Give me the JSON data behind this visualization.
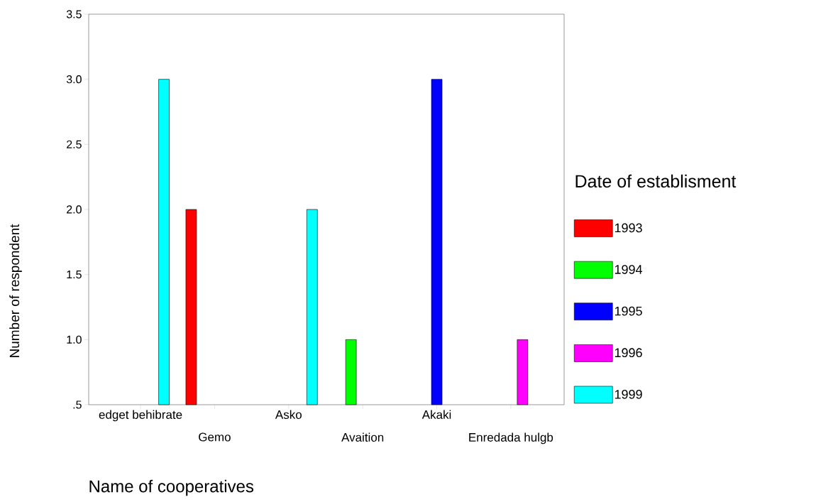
{
  "chart_data": {
    "type": "bar",
    "xlabel": "Name of cooperatives",
    "ylabel": "Number of respondent",
    "legend_title": "Date of establisment",
    "categories": [
      "edget behibrate",
      "Gemo",
      "Asko",
      "Avaition",
      "Akaki",
      "Enredada hulgb"
    ],
    "series": [
      {
        "name": "1993",
        "color": "#ff0000",
        "values": [
          null,
          2,
          null,
          null,
          null,
          null
        ]
      },
      {
        "name": "1994",
        "color": "#00ff00",
        "values": [
          null,
          null,
          null,
          1,
          null,
          null
        ]
      },
      {
        "name": "1995",
        "color": "#0000ff",
        "values": [
          null,
          null,
          null,
          null,
          3,
          null
        ]
      },
      {
        "name": "1996",
        "color": "#ff00ff",
        "values": [
          null,
          null,
          null,
          null,
          null,
          1
        ]
      },
      {
        "name": "1999",
        "color": "#00ffff",
        "values": [
          3,
          null,
          2,
          null,
          null,
          null
        ]
      }
    ],
    "ylim": [
      0.5,
      3.5
    ],
    "yticks": [
      {
        "value": 0.5,
        "label": ".5"
      },
      {
        "value": 1,
        "label": "1.0"
      },
      {
        "value": 1.5,
        "label": "1.5"
      },
      {
        "value": 2,
        "label": "2.0"
      },
      {
        "value": 2.5,
        "label": "2.5"
      },
      {
        "value": 3,
        "label": "3.0"
      },
      {
        "value": 3.5,
        "label": "3.5"
      }
    ],
    "legend": "right",
    "grid": false
  }
}
